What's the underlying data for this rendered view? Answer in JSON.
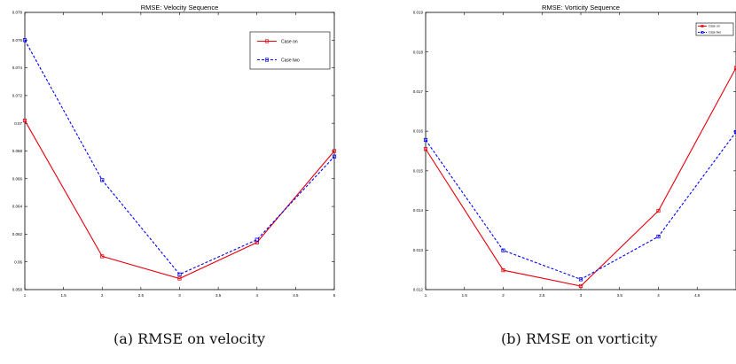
{
  "chart_data": [
    {
      "type": "line",
      "title": "RMSE: Velocity Sequence",
      "xlabel": "",
      "ylabel": "",
      "xlim": [
        1,
        5
      ],
      "ylim": [
        0.058,
        0.078
      ],
      "x_ticks": [
        "1",
        "1.5",
        "2",
        "2.5",
        "3",
        "3.5",
        "4",
        "4.5",
        "5"
      ],
      "y_ticks": [
        "0.058",
        "0.06",
        "0.062",
        "0.064",
        "0.066",
        "0.068",
        "0.07",
        "0.072",
        "0.074",
        "0.076",
        "0.078"
      ],
      "legend_position": "top-right",
      "x": [
        1,
        2,
        3,
        4,
        5
      ],
      "series": [
        {
          "name": "Case on",
          "values": [
            0.0702,
            0.0604,
            0.0588,
            0.0614,
            0.068
          ],
          "color": "#e8000b",
          "style": "solid",
          "marker": "square"
        },
        {
          "name": "Case two",
          "values": [
            0.076,
            0.0659,
            0.0591,
            0.0616,
            0.0676
          ],
          "color": "#0000ff",
          "style": "dashed",
          "marker": "square"
        }
      ]
    },
    {
      "type": "line",
      "title": "RMSE: Vorticity Sequence",
      "xlabel": "",
      "ylabel": "",
      "xlim": [
        1,
        5
      ],
      "ylim": [
        0.012,
        0.019
      ],
      "x_ticks": [
        "1",
        "1.5",
        "2",
        "2.5",
        "3",
        "3.5",
        "4",
        "4.5"
      ],
      "y_ticks": [
        "0.012",
        "0.013",
        "0.014",
        "0.015",
        "0.016",
        "0.017",
        "0.018",
        "0.019"
      ],
      "legend_position": "top-right",
      "x": [
        1,
        2,
        3,
        4,
        5
      ],
      "series": [
        {
          "name": "Case on",
          "values": [
            0.01555,
            0.01249,
            0.01209,
            0.01399,
            0.0176
          ],
          "color": "#e8000b",
          "style": "solid",
          "marker": "square"
        },
        {
          "name": "Case two",
          "values": [
            0.01578,
            0.01299,
            0.01226,
            0.01334,
            0.01598
          ],
          "color": "#0000ff",
          "style": "dashed",
          "marker": "square"
        }
      ]
    }
  ],
  "captions": {
    "a": "(a)  RMSE on velocity",
    "b": "(b)  RMSE on vorticity"
  }
}
